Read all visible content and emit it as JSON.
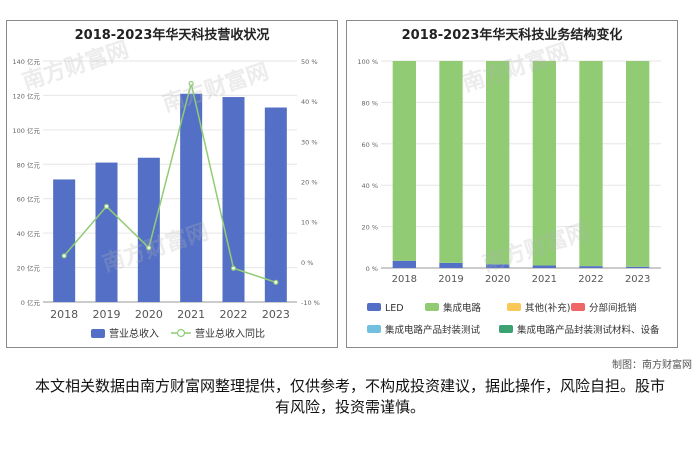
{
  "left_title": "2018-2023年华天科技营收状况",
  "right_title": "2018-2023年华天科技业务结构变化",
  "credit": "制图：南方财富网",
  "disclaimer": "本文相关数据由南方财富网整理提供，仅供参考，不构成投资建议，据此操作，风险自担。股市有风险，投资需谨慎。",
  "watermark": "南方财富网",
  "colors": {
    "bar": "#5470c6",
    "line": "#91cc75",
    "led": "#5470c6",
    "ic": "#91cc75",
    "other": "#fac858",
    "offset": "#ee6666",
    "ic_test": "#73c0de",
    "ic_material": "#3ba272"
  },
  "chart_data": [
    {
      "type": "bar",
      "title": "2018-2023年华天科技营收状况",
      "categories": [
        "2018",
        "2019",
        "2020",
        "2021",
        "2022",
        "2023"
      ],
      "series": [
        {
          "name": "营业总收入",
          "type": "bar",
          "axis": "left",
          "values": [
            71.2,
            81.0,
            83.8,
            120.97,
            119.06,
            112.98
          ]
        },
        {
          "name": "营业总收入同比",
          "type": "line",
          "axis": "right",
          "values": [
            1.5,
            13.8,
            3.5,
            44.4,
            -1.6,
            -5.1
          ]
        }
      ],
      "y_left": {
        "ticks": [
          "0 亿元",
          "20 亿元",
          "40 亿元",
          "60 亿元",
          "80 亿元",
          "100 亿元",
          "120 亿元",
          "140 亿元"
        ],
        "ylim": [
          0,
          140
        ]
      },
      "y_right": {
        "ticks": [
          "-10 %",
          "0 %",
          "10 %",
          "20 %",
          "30 %",
          "40 %",
          "50 %"
        ],
        "ylim": [
          -10,
          50
        ]
      },
      "grid": true,
      "legend": "bottom"
    },
    {
      "type": "bar",
      "stacked": true,
      "title": "2018-2023年华天科技业务结构变化",
      "categories": [
        "2018",
        "2019",
        "2020",
        "2021",
        "2022",
        "2023"
      ],
      "series": [
        {
          "name": "LED",
          "values": [
            3.5,
            2.5,
            1.8,
            1.2,
            0.9,
            0.6
          ]
        },
        {
          "name": "集成电路",
          "values": [
            96.5,
            97.5,
            98.2,
            98.8,
            99.1,
            99.4
          ]
        },
        {
          "name": "其他(补充)",
          "values": [
            0,
            0,
            0,
            0,
            0,
            0
          ]
        },
        {
          "name": "分部间抵销",
          "values": [
            0,
            0,
            0,
            0,
            0,
            0
          ]
        },
        {
          "name": "集成电路产品封装测试",
          "values": [
            0,
            0,
            0,
            0,
            0,
            0
          ]
        },
        {
          "name": "集成电路产品封装测试材料、设备",
          "values": [
            0,
            0,
            0,
            0,
            0,
            0
          ]
        }
      ],
      "y": {
        "ticks": [
          "0 %",
          "20 %",
          "40 %",
          "60 %",
          "80 %",
          "100 %"
        ],
        "ylim": [
          0,
          100
        ]
      },
      "grid": true,
      "legend": "bottom"
    }
  ]
}
